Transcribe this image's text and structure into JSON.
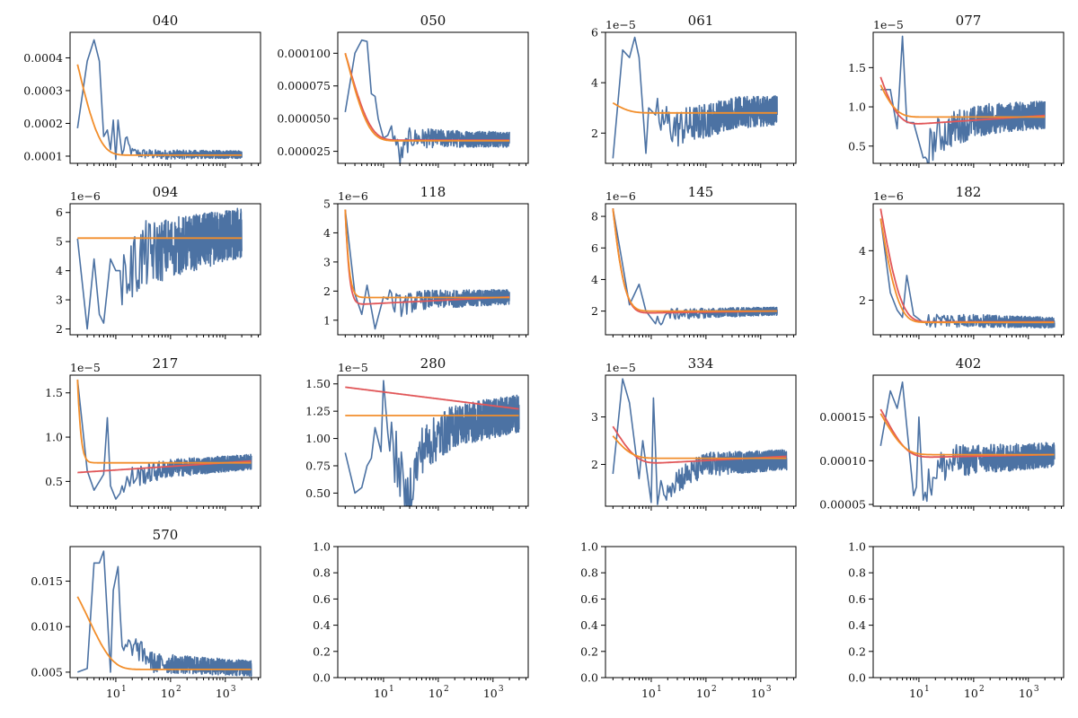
{
  "chart_data": {
    "type": "line",
    "layout": "4x4 grid",
    "xscale": "log",
    "xlim": [
      1.46,
      4400
    ],
    "x_tick_labels": [
      "10^1",
      "10^2",
      "10^3"
    ],
    "x_tick_values": [
      10,
      100,
      1000
    ],
    "series_colors": {
      "data": "#4c72a3",
      "fit_a": "#f28e2b",
      "fit_b": "#e15759"
    },
    "panels": [
      {
        "title": "040",
        "ylim": [
          7.8e-05,
          0.000478
        ],
        "yticks": [
          0.0001,
          0.0002,
          0.0003,
          0.0004
        ],
        "ytick_labels": [
          "0.0001",
          "0.0002",
          "0.0003",
          "0.0004"
        ],
        "offset": "",
        "x_end": 2000,
        "data_keypoints": [
          [
            2,
            0.000185
          ],
          [
            3,
            0.00039
          ],
          [
            4,
            0.000455
          ],
          [
            5,
            0.00039
          ],
          [
            6,
            0.00016
          ],
          [
            7,
            0.00018
          ],
          [
            8,
            0.00012
          ],
          [
            9,
            0.00021
          ],
          [
            10,
            9e-05
          ],
          [
            11,
            0.00021
          ],
          [
            13,
            0.0001
          ],
          [
            15,
            0.00015
          ],
          [
            20,
            0.00011
          ],
          [
            50,
            0.000105
          ],
          [
            2000,
            0.000105
          ]
        ],
        "noise": 8e-06,
        "fit_a": {
          "a": 0.00038,
          "c": 0.000103,
          "k": 1.1
        },
        "fit_b": null
      },
      {
        "title": "050",
        "ylim": [
          1.58e-05,
          0.000116
        ],
        "yticks": [
          2.5e-05,
          5e-05,
          7.5e-05,
          0.0001
        ],
        "ytick_labels": [
          "0.000025",
          "0.000050",
          "0.000075",
          "0.000100"
        ],
        "offset": "",
        "x_end": 2000,
        "data_keypoints": [
          [
            2,
            5.5e-05
          ],
          [
            3,
            0.0001
          ],
          [
            4,
            0.00011
          ],
          [
            5,
            0.000109
          ],
          [
            6,
            6.9e-05
          ],
          [
            7,
            6.7e-05
          ],
          [
            8,
            5e-05
          ],
          [
            10,
            3.5e-05
          ],
          [
            15,
            4e-05
          ],
          [
            20,
            2e-05
          ],
          [
            30,
            3.5e-05
          ],
          [
            50,
            3.5e-05
          ],
          [
            2000,
            3.4e-05
          ]
        ],
        "noise": 4e-06,
        "fit_a": {
          "a": 0.0001,
          "c": 3.3e-05,
          "k": 1.05
        },
        "fit_b": {
          "a": 0.0001,
          "c": 3.35e-05,
          "k": 0.95,
          "drift": 0.0
        }
      },
      {
        "title": "061",
        "ylim": [
          8e-06,
          6e-05
        ],
        "yticks": [
          2e-05,
          4e-05,
          6e-05
        ],
        "ytick_labels": [
          "2",
          "4",
          "6"
        ],
        "offset": "1e−5",
        "x_end": 2000,
        "data_keypoints": [
          [
            2,
            1e-05
          ],
          [
            3,
            5.3e-05
          ],
          [
            4,
            5e-05
          ],
          [
            5,
            5.8e-05
          ],
          [
            6,
            5e-05
          ],
          [
            8,
            1.2e-05
          ],
          [
            9,
            3e-05
          ],
          [
            15,
            2.5e-05
          ],
          [
            30,
            2.2e-05
          ],
          [
            100,
            2.5e-05
          ],
          [
            300,
            2.8e-05
          ],
          [
            2000,
            2.9e-05
          ]
        ],
        "noise": 4e-06,
        "fit_a": {
          "a": 3.2e-05,
          "c": 2.8e-05,
          "k": 1.5
        },
        "fit_b": null
      },
      {
        "title": "077",
        "ylim": [
          2.8e-06,
          1.95e-05
        ],
        "yticks": [
          5e-06,
          1e-05,
          1.5e-05
        ],
        "ytick_labels": [
          "0.5",
          "1.0",
          "1.5"
        ],
        "offset": "1e−5",
        "x_end": 2000,
        "data_keypoints": [
          [
            2,
            1.22e-05
          ],
          [
            3,
            1.22e-05
          ],
          [
            4,
            7.2e-06
          ],
          [
            5,
            1.9e-05
          ],
          [
            6,
            8e-06
          ],
          [
            8,
            8e-06
          ],
          [
            12,
            3.5e-06
          ],
          [
            20,
            6e-06
          ],
          [
            50,
            7.5e-06
          ],
          [
            200,
            8.5e-06
          ],
          [
            2000,
            9e-06
          ]
        ],
        "noise": 1.2e-06,
        "fit_a": {
          "a": 1.28e-05,
          "c": 8.7e-06,
          "k": 1.6
        },
        "fit_b": {
          "a": 1.38e-05,
          "c": 7.5e-06,
          "k": 1.4,
          "drift": 1.4e-06
        }
      },
      {
        "title": "094",
        "ylim": [
          1.8e-06,
          6.3e-06
        ],
        "yticks": [
          2e-06,
          3e-06,
          4e-06,
          5e-06,
          6e-06
        ],
        "ytick_labels": [
          "2",
          "3",
          "4",
          "5",
          "6"
        ],
        "offset": "1e−6",
        "x_end": 2000,
        "data_keypoints": [
          [
            2,
            5.1e-06
          ],
          [
            3,
            2e-06
          ],
          [
            4,
            4.4e-06
          ],
          [
            5,
            2.5e-06
          ],
          [
            6,
            2.2e-06
          ],
          [
            8,
            4.4e-06
          ],
          [
            10,
            4e-06
          ],
          [
            20,
            4e-06
          ],
          [
            30,
            4.5e-06
          ],
          [
            100,
            4.8e-06
          ],
          [
            2000,
            5.3e-06
          ]
        ],
        "noise": 6e-07,
        "fit_a": {
          "a": 5.12e-06,
          "c": 5.12e-06,
          "k": 1.0
        },
        "fit_b": null
      },
      {
        "title": "118",
        "ylim": [
          5e-07,
          5e-06
        ],
        "yticks": [
          1e-06,
          2e-06,
          3e-06,
          4e-06,
          5e-06
        ],
        "ytick_labels": [
          "1",
          "2",
          "3",
          "4",
          "5"
        ],
        "offset": "1e−6",
        "x_end": 2000,
        "data_keypoints": [
          [
            2,
            4.8e-06
          ],
          [
            3,
            1.9e-06
          ],
          [
            4,
            1.2e-06
          ],
          [
            5,
            2.2e-06
          ],
          [
            7,
            7e-07
          ],
          [
            10,
            1.8e-06
          ],
          [
            20,
            1.5e-06
          ],
          [
            50,
            1.7e-06
          ],
          [
            2000,
            1.8e-06
          ]
        ],
        "noise": 1.8e-07,
        "fit_a": {
          "a": 4.8e-06,
          "c": 1.78e-06,
          "k": 6.0
        },
        "fit_b": {
          "a": 4.8e-06,
          "c": 1.52e-06,
          "k": 6.0,
          "drift": 2.8e-07
        }
      },
      {
        "title": "145",
        "ylim": [
          5e-07,
          8.8e-06
        ],
        "yticks": [
          2e-06,
          4e-06,
          6e-06,
          8e-06
        ],
        "ytick_labels": [
          "2",
          "4",
          "6",
          "8"
        ],
        "offset": "1e−6",
        "x_end": 2000,
        "data_keypoints": [
          [
            2,
            8.5e-06
          ],
          [
            4,
            2.4e-06
          ],
          [
            6,
            3.7e-06
          ],
          [
            8,
            2e-06
          ],
          [
            12,
            1.2e-06
          ],
          [
            20,
            1.8e-06
          ],
          [
            2000,
            2e-06
          ]
        ],
        "noise": 1.8e-07,
        "fit_a": {
          "a": 8.5e-06,
          "c": 2e-06,
          "k": 2.2
        },
        "fit_b": {
          "a": 8.5e-06,
          "c": 1.85e-06,
          "k": 2.1,
          "drift": 1.5e-07
        }
      },
      {
        "title": "182",
        "ylim": [
          6e-07,
          5.9e-06
        ],
        "yticks": [
          2e-06,
          4e-06
        ],
        "ytick_labels": [
          "2",
          "4"
        ],
        "offset": "1e−6",
        "x_end": 3000,
        "data_keypoints": [
          [
            2,
            5.3e-06
          ],
          [
            3,
            2.3e-06
          ],
          [
            4,
            1.6e-06
          ],
          [
            5,
            1.3e-06
          ],
          [
            6,
            3e-06
          ],
          [
            8,
            1.4e-06
          ],
          [
            12,
            1.1e-06
          ],
          [
            20,
            1.2e-06
          ],
          [
            2000,
            1.1e-06
          ]
        ],
        "noise": 1.5e-07,
        "fit_a": {
          "a": 5.3e-06,
          "c": 1.1e-06,
          "k": 1.4
        },
        "fit_b": {
          "a": 5.7e-06,
          "c": 1.12e-06,
          "k": 1.2,
          "drift": 0.0
        }
      },
      {
        "title": "217",
        "ylim": [
          2.2e-06,
          1.7e-05
        ],
        "yticks": [
          5e-06,
          1e-05,
          1.5e-05
        ],
        "ytick_labels": [
          "0.5",
          "1.0",
          "1.5"
        ],
        "offset": "1e−5",
        "x_end": 3000,
        "data_keypoints": [
          [
            2,
            1.65e-05
          ],
          [
            3,
            6.2e-06
          ],
          [
            4,
            4e-06
          ],
          [
            6,
            5.8e-06
          ],
          [
            7,
            1.22e-05
          ],
          [
            8,
            4.5e-06
          ],
          [
            10,
            3e-06
          ],
          [
            20,
            5.5e-06
          ],
          [
            100,
            6.5e-06
          ],
          [
            3000,
            7.2e-06
          ]
        ],
        "noise": 6e-07,
        "fit_a": {
          "a": 1.65e-05,
          "c": 7.1e-06,
          "k": 7.0
        },
        "fit_b": {
          "a": 6e-06,
          "c": 6e-06,
          "k": 1.0,
          "drift": 1.3e-06
        }
      },
      {
        "title": "280",
        "ylim": [
          3.8e-06,
          1.58e-05
        ],
        "yticks": [
          5e-06,
          7.5e-06,
          1e-05,
          1.25e-05,
          1.5e-05
        ],
        "ytick_labels": [
          "0.50",
          "0.75",
          "1.00",
          "1.25",
          "1.50"
        ],
        "offset": "1e−5",
        "x_end": 3000,
        "data_keypoints": [
          [
            2,
            8.7e-06
          ],
          [
            3,
            5e-06
          ],
          [
            4,
            5.5e-06
          ],
          [
            5,
            7.5e-06
          ],
          [
            6,
            8.2e-06
          ],
          [
            7,
            1.1e-05
          ],
          [
            9,
            8.8e-06
          ],
          [
            10,
            1.53e-05
          ],
          [
            12,
            1.05e-05
          ],
          [
            20,
            7e-06
          ],
          [
            25,
            4e-06
          ],
          [
            50,
            9e-06
          ],
          [
            200,
            1.12e-05
          ],
          [
            3000,
            1.23e-05
          ]
        ],
        "noise": 1.2e-06,
        "fit_a": {
          "a": 1.21e-05,
          "c": 1.21e-05,
          "k": 1.0
        },
        "fit_b": {
          "a": 1.47e-05,
          "c": 1.47e-05,
          "k": 1.0,
          "drift": -2e-06
        }
      },
      {
        "title": "334",
        "ylim": [
          1.12e-05,
          3.88e-05
        ],
        "yticks": [
          2e-05,
          3e-05
        ],
        "ytick_labels": [
          "2",
          "3"
        ],
        "offset": "1e−5",
        "x_end": 3000,
        "data_keypoints": [
          [
            2,
            1.8e-05
          ],
          [
            3,
            3.8e-05
          ],
          [
            4,
            3.3e-05
          ],
          [
            6,
            1.7e-05
          ],
          [
            7,
            2.5e-05
          ],
          [
            10,
            1.2e-05
          ],
          [
            11,
            3.4e-05
          ],
          [
            13,
            1.3e-05
          ],
          [
            20,
            1.6e-05
          ],
          [
            50,
            1.8e-05
          ],
          [
            100,
            2e-05
          ],
          [
            3000,
            2.1e-05
          ]
        ],
        "noise": 1.5e-06,
        "fit_a": {
          "a": 2.6e-05,
          "c": 2.13e-05,
          "k": 1.3
        },
        "fit_b": {
          "a": 2.8e-05,
          "c": 1.98e-05,
          "k": 1.0,
          "drift": 1.9e-06
        }
      },
      {
        "title": "402",
        "ylim": [
          4.8e-05,
          0.000198
        ],
        "yticks": [
          5e-05,
          0.0001,
          0.00015
        ],
        "ytick_labels": [
          "0.00005",
          "0.00010",
          "0.00015"
        ],
        "offset": "",
        "x_end": 3000,
        "data_keypoints": [
          [
            2,
            0.000117
          ],
          [
            3,
            0.00018
          ],
          [
            4,
            0.00016
          ],
          [
            5,
            0.00019
          ],
          [
            8,
            6e-05
          ],
          [
            9,
            7e-05
          ],
          [
            10,
            0.00015
          ],
          [
            12,
            5.5e-05
          ],
          [
            20,
            9e-05
          ],
          [
            50,
            0.0001
          ],
          [
            3000,
            0.000107
          ]
        ],
        "noise": 1e-05,
        "fit_a": {
          "a": 0.000154,
          "c": 0.000107,
          "k": 1.0
        },
        "fit_b": {
          "a": 0.000159,
          "c": 0.000103,
          "k": 0.9,
          "drift": 4e-06
        }
      },
      {
        "title": "570",
        "ylim": [
          0.0044,
          0.0188
        ],
        "yticks": [
          0.005,
          0.01,
          0.015
        ],
        "ytick_labels": [
          "0.005",
          "0.010",
          "0.015"
        ],
        "offset": "",
        "x_end": 3000,
        "data_keypoints": [
          [
            2,
            0.005
          ],
          [
            3,
            0.0054
          ],
          [
            4,
            0.017
          ],
          [
            5,
            0.017
          ],
          [
            6,
            0.0183
          ],
          [
            8,
            0.005
          ],
          [
            9,
            0.014
          ],
          [
            11,
            0.0166
          ],
          [
            13,
            0.007
          ],
          [
            20,
            0.008
          ],
          [
            50,
            0.006
          ],
          [
            3000,
            0.0054
          ]
        ],
        "noise": 0.0006,
        "fit_a": {
          "a": 0.0133,
          "c": 0.0053,
          "k": 0.62
        },
        "fit_b": null
      },
      {
        "title": "",
        "ylim": [
          0,
          1
        ],
        "yticks": [
          0,
          0.2,
          0.4,
          0.6,
          0.8,
          1.0
        ],
        "ytick_labels": [
          "0.0",
          "0.2",
          "0.4",
          "0.6",
          "0.8",
          "1.0"
        ],
        "offset": "",
        "empty": true
      },
      {
        "title": "",
        "ylim": [
          0,
          1
        ],
        "yticks": [
          0,
          0.2,
          0.4,
          0.6,
          0.8,
          1.0
        ],
        "ytick_labels": [
          "0.0",
          "0.2",
          "0.4",
          "0.6",
          "0.8",
          "1.0"
        ],
        "offset": "",
        "empty": true
      },
      {
        "title": "",
        "ylim": [
          0,
          1
        ],
        "yticks": [
          0,
          0.2,
          0.4,
          0.6,
          0.8,
          1.0
        ],
        "ytick_labels": [
          "0.0",
          "0.2",
          "0.4",
          "0.6",
          "0.8",
          "1.0"
        ],
        "offset": "",
        "empty": true
      }
    ]
  }
}
